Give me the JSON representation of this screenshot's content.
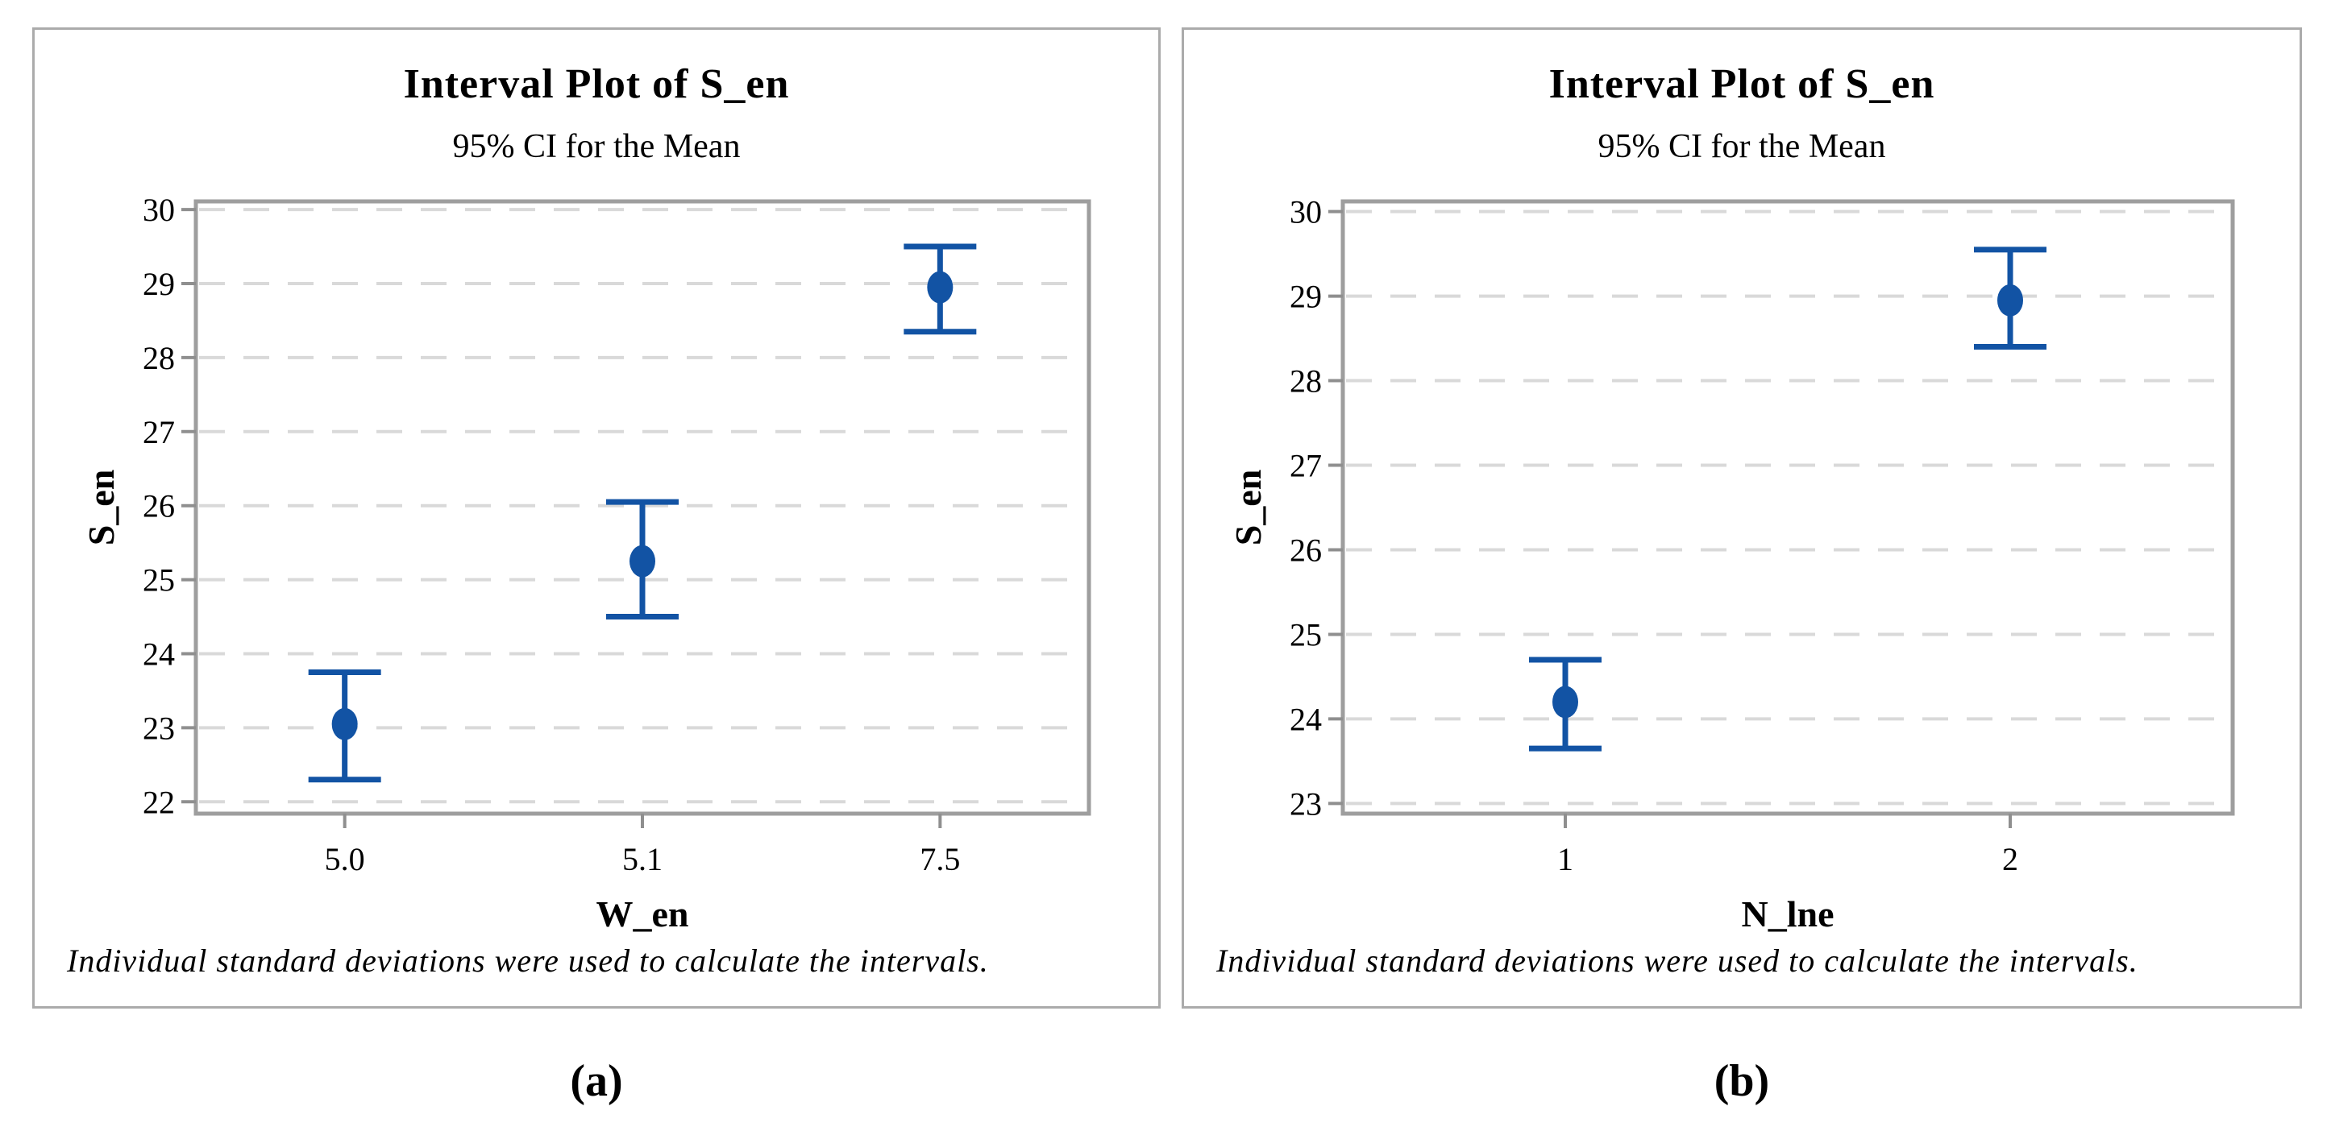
{
  "chart_data": [
    {
      "type": "interval",
      "panel": "a",
      "caption": "(a)",
      "title": "Interval Plot of S_en",
      "subtitle": "95% CI for the Mean",
      "xlabel": "W_en",
      "ylabel": "S_en",
      "footnote": "Individual standard deviations were used to calculate the intervals.",
      "categories": [
        "5.0",
        "5.1",
        "7.5"
      ],
      "series": [
        {
          "name": "S_en mean with 95% CI",
          "means": [
            23.05,
            25.25,
            28.95
          ],
          "ci_lower": [
            22.3,
            24.5,
            28.35
          ],
          "ci_upper": [
            23.75,
            26.05,
            29.5
          ]
        }
      ],
      "yticks": [
        22,
        23,
        24,
        25,
        26,
        27,
        28,
        29,
        30
      ],
      "ylim": [
        21.84,
        30.11
      ],
      "grid": "horizontal-dashed",
      "legend": "none"
    },
    {
      "type": "interval",
      "panel": "b",
      "caption": "(b)",
      "title": "Interval Plot of S_en",
      "subtitle": "95% CI for the Mean",
      "xlabel": "N_lne",
      "ylabel": "S_en",
      "footnote": "Individual standard deviations were used to calculate the intervals.",
      "categories": [
        "1",
        "2"
      ],
      "series": [
        {
          "name": "S_en mean with 95% CI",
          "means": [
            24.2,
            28.95
          ],
          "ci_lower": [
            23.65,
            28.4
          ],
          "ci_upper": [
            24.7,
            29.55
          ]
        }
      ],
      "yticks": [
        23,
        24,
        25,
        26,
        27,
        28,
        29,
        30
      ],
      "ylim": [
        22.88,
        30.12
      ],
      "grid": "horizontal-dashed",
      "legend": "none"
    }
  ],
  "colors": {
    "interval": "#1253a4",
    "grid": "#d9d9d9",
    "frame": "#9e9e9e",
    "tick": "#8f8f8f",
    "panel_border": "#ababab",
    "text": "#000000"
  }
}
